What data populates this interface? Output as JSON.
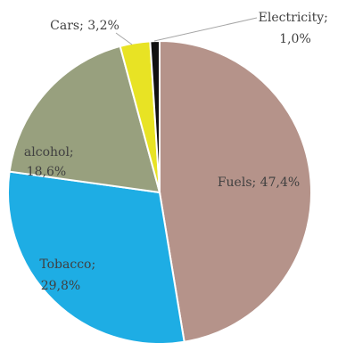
{
  "chart_data": {
    "type": "pie",
    "title": "",
    "slices": [
      {
        "label": "Fuels",
        "value": 47.4,
        "display": "Fuels; 47,4%",
        "color": "#b5938a"
      },
      {
        "label": "Tobacco",
        "value": 29.8,
        "display_lines": [
          "Tobacco;",
          "29,8%"
        ],
        "color": "#1eade4"
      },
      {
        "label": "alcohol",
        "value": 18.6,
        "display_lines": [
          "alcohol;",
          "18,6%"
        ],
        "color": "#98a07e"
      },
      {
        "label": "Cars",
        "value": 3.2,
        "display": "Cars; 3,2%",
        "color": "#e8e324"
      },
      {
        "label": "Electricity",
        "value": 1.0,
        "display_lines": [
          "Electricity;",
          "1,0%"
        ],
        "color": "#111111"
      }
    ],
    "start_direction": "top",
    "direction": "clockwise",
    "legend": "none"
  }
}
